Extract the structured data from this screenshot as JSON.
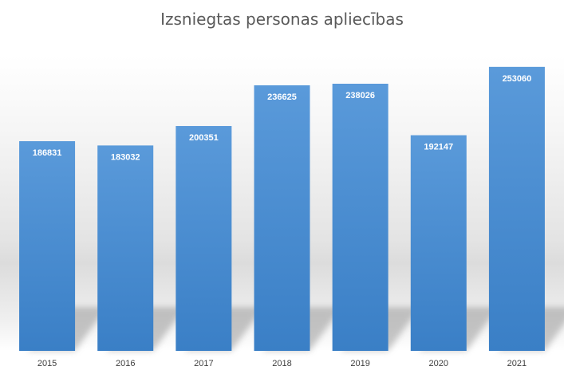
{
  "chart_data": {
    "type": "bar",
    "title": "Izsniegtas personas apliecības",
    "categories": [
      "2015",
      "2016",
      "2017",
      "2018",
      "2019",
      "2020",
      "2021"
    ],
    "values": [
      186831,
      183032,
      200351,
      236625,
      238026,
      192147,
      253060
    ],
    "xlabel": "",
    "ylabel": "",
    "ylim": [
      0,
      270000
    ],
    "grid": false,
    "legend": "none",
    "bar_color": "#4a8fd4",
    "bar_color_dark": "#3a7fc6",
    "label_color": "#ffffff"
  }
}
